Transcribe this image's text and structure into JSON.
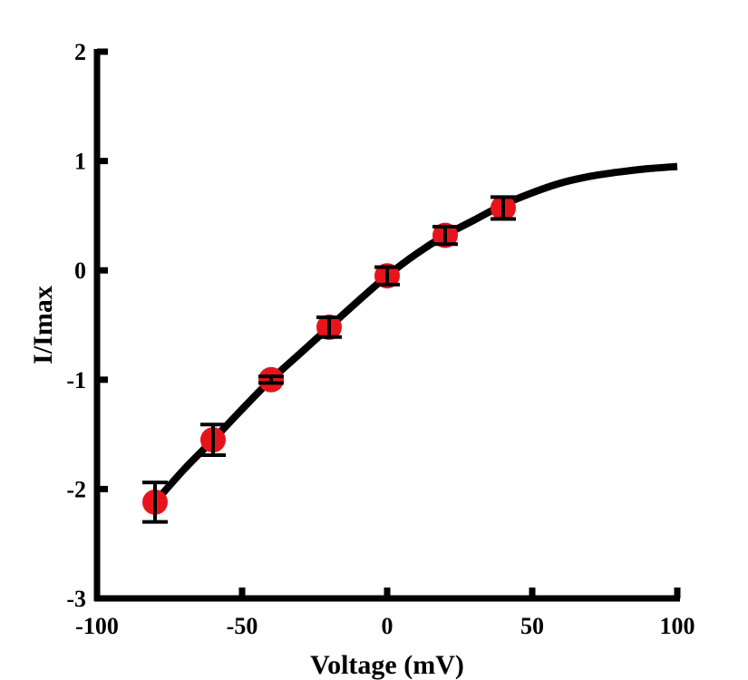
{
  "chart_data": {
    "type": "scatter",
    "title": "",
    "xlabel": "Voltage (mV)",
    "ylabel": "I/Imax",
    "xlim": [
      -100,
      100
    ],
    "ylim": [
      -3,
      2
    ],
    "x_ticks": [
      -100,
      -50,
      0,
      50,
      100
    ],
    "y_ticks": [
      -3,
      -2,
      -1,
      0,
      1,
      2
    ],
    "x_tick_labels": [
      "-100",
      "-50",
      "0",
      "50",
      "100"
    ],
    "y_tick_labels": [
      "-3",
      "-2",
      "-1",
      "0",
      "1",
      "2"
    ],
    "grid": false,
    "legend": "none",
    "series": [
      {
        "kind": "points-with-error-bars",
        "color": "#e8141c",
        "x": [
          -80,
          -60,
          -40,
          -20,
          0,
          20,
          40
        ],
        "y": [
          -2.12,
          -1.55,
          -1.0,
          -0.52,
          -0.05,
          0.32,
          0.57
        ],
        "error": [
          0.18,
          0.14,
          0.03,
          0.09,
          0.08,
          0.08,
          0.1
        ]
      },
      {
        "kind": "fit-line",
        "color": "#000000",
        "x": [
          -80,
          -70,
          -60,
          -50,
          -40,
          -30,
          -20,
          -10,
          0,
          10,
          20,
          30,
          40,
          50,
          60,
          70,
          80,
          90,
          100
        ],
        "y": [
          -2.12,
          -1.82,
          -1.55,
          -1.27,
          -1.0,
          -0.76,
          -0.52,
          -0.28,
          -0.05,
          0.15,
          0.32,
          0.46,
          0.6,
          0.71,
          0.8,
          0.86,
          0.9,
          0.93,
          0.95
        ]
      }
    ]
  }
}
